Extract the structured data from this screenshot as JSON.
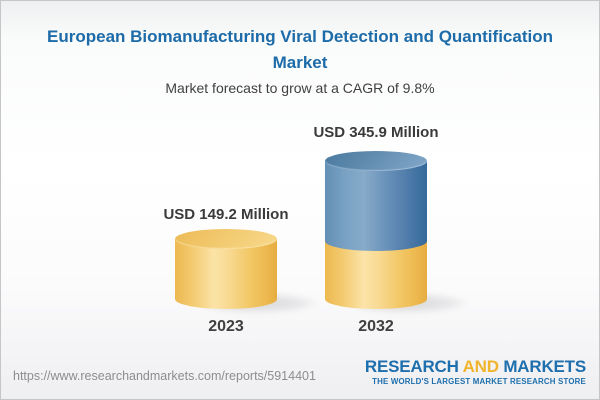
{
  "title": "European Biomanufacturing Viral Detection and Quantification Market",
  "subtitle": "Market forecast to grow at a CAGR of 9.8%",
  "chart_data": {
    "type": "bar",
    "style": "3d-cylinder",
    "categories": [
      "2023",
      "2032"
    ],
    "values": [
      149.2,
      345.9
    ],
    "unit": "USD Million",
    "value_labels": [
      "USD 149.2 Million",
      "USD 345.9 Million"
    ],
    "cagr_percent": 9.8,
    "title": "European Biomanufacturing Viral Detection and Quantification Market",
    "subtitle": "Market forecast to grow at a CAGR of 9.8%",
    "xlabel": "",
    "ylabel": "",
    "legend": "none",
    "grid": false,
    "colors": {
      "base_segment": "#f2c868",
      "growth_segment": "#5b89b4",
      "label_text": "#3a3a3a",
      "title_text": "#1d6ba8"
    },
    "notes": "2032 cylinder is stacked: gold base equals the 2023 value, blue top is incremental growth"
  },
  "footer": {
    "url": "https://www.researchandmarkets.com/reports/5914401",
    "logo": {
      "word1": "RESEARCH ",
      "word2": "AND",
      "word3": " MARKETS",
      "tagline": "THE WORLD'S LARGEST MARKET RESEARCH STORE",
      "blue": "#1e6fad",
      "gold": "#f0b42d"
    }
  }
}
